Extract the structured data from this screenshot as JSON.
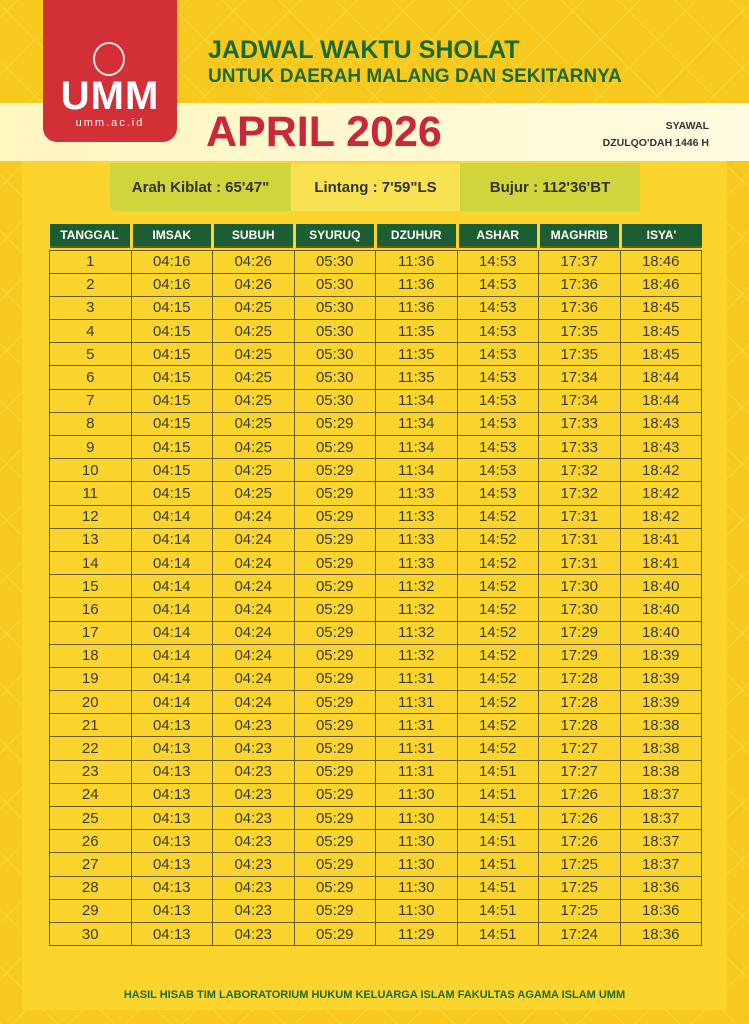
{
  "logo": {
    "name": "UMM",
    "site": "umm.ac.id"
  },
  "header": {
    "title": "JADWAL WAKTU SHOLAT",
    "subtitle": "UNTUK DAERAH MALANG DAN SEKITARNYA",
    "month": "APRIL 2026",
    "hijri_1": "SYAWAL",
    "hijri_2": "DZULQO'DAH 1446 H"
  },
  "info": {
    "kiblat": "Arah Kiblat : 65'47\"",
    "lintang": "Lintang : 7'59\"LS",
    "bujur": "Bujur : 112'36'BT"
  },
  "colors": {
    "green": "#1b5e33",
    "red": "#d22f37",
    "yellow": "#f7c81e"
  },
  "table": {
    "headers": [
      "TANGGAL",
      "IMSAK",
      "SUBUH",
      "SYURUQ",
      "DZUHUR",
      "ASHAR",
      "MAGHRIB",
      "ISYA'"
    ],
    "rows": [
      [
        "1",
        "04:16",
        "04:26",
        "05:30",
        "11:36",
        "14:53",
        "17:37",
        "18:46"
      ],
      [
        "2",
        "04:16",
        "04:26",
        "05:30",
        "11:36",
        "14:53",
        "17:36",
        "18:46"
      ],
      [
        "3",
        "04:15",
        "04:25",
        "05:30",
        "11:36",
        "14:53",
        "17:36",
        "18:45"
      ],
      [
        "4",
        "04:15",
        "04:25",
        "05:30",
        "11:35",
        "14:53",
        "17:35",
        "18:45"
      ],
      [
        "5",
        "04:15",
        "04:25",
        "05:30",
        "11:35",
        "14:53",
        "17:35",
        "18:45"
      ],
      [
        "6",
        "04:15",
        "04:25",
        "05:30",
        "11:35",
        "14:53",
        "17:34",
        "18:44"
      ],
      [
        "7",
        "04:15",
        "04:25",
        "05:30",
        "11:34",
        "14:53",
        "17:34",
        "18:44"
      ],
      [
        "8",
        "04:15",
        "04:25",
        "05:29",
        "11:34",
        "14:53",
        "17:33",
        "18:43"
      ],
      [
        "9",
        "04:15",
        "04:25",
        "05:29",
        "11:34",
        "14:53",
        "17:33",
        "18:43"
      ],
      [
        "10",
        "04:15",
        "04:25",
        "05:29",
        "11:34",
        "14:53",
        "17:32",
        "18:42"
      ],
      [
        "11",
        "04:15",
        "04:25",
        "05:29",
        "11:33",
        "14:53",
        "17:32",
        "18:42"
      ],
      [
        "12",
        "04:14",
        "04:24",
        "05:29",
        "11:33",
        "14:52",
        "17:31",
        "18:42"
      ],
      [
        "13",
        "04:14",
        "04:24",
        "05:29",
        "11:33",
        "14:52",
        "17:31",
        "18:41"
      ],
      [
        "14",
        "04:14",
        "04:24",
        "05:29",
        "11:33",
        "14:52",
        "17:31",
        "18:41"
      ],
      [
        "15",
        "04:14",
        "04:24",
        "05:29",
        "11:32",
        "14:52",
        "17:30",
        "18:40"
      ],
      [
        "16",
        "04:14",
        "04:24",
        "05:29",
        "11:32",
        "14:52",
        "17:30",
        "18:40"
      ],
      [
        "17",
        "04:14",
        "04:24",
        "05:29",
        "11:32",
        "14:52",
        "17:29",
        "18:40"
      ],
      [
        "18",
        "04:14",
        "04:24",
        "05:29",
        "11:32",
        "14:52",
        "17:29",
        "18:39"
      ],
      [
        "19",
        "04:14",
        "04:24",
        "05:29",
        "11:31",
        "14:52",
        "17:28",
        "18:39"
      ],
      [
        "20",
        "04:14",
        "04:24",
        "05:29",
        "11:31",
        "14:52",
        "17:28",
        "18:39"
      ],
      [
        "21",
        "04:13",
        "04:23",
        "05:29",
        "11:31",
        "14:52",
        "17:28",
        "18:38"
      ],
      [
        "22",
        "04:13",
        "04:23",
        "05:29",
        "11:31",
        "14:52",
        "17:27",
        "18:38"
      ],
      [
        "23",
        "04:13",
        "04:23",
        "05:29",
        "11:31",
        "14:51",
        "17:27",
        "18:38"
      ],
      [
        "24",
        "04:13",
        "04:23",
        "05:29",
        "11:30",
        "14:51",
        "17:26",
        "18:37"
      ],
      [
        "25",
        "04:13",
        "04:23",
        "05:29",
        "11:30",
        "14:51",
        "17:26",
        "18:37"
      ],
      [
        "26",
        "04:13",
        "04:23",
        "05:29",
        "11:30",
        "14:51",
        "17:26",
        "18:37"
      ],
      [
        "27",
        "04:13",
        "04:23",
        "05:29",
        "11:30",
        "14:51",
        "17:25",
        "18:37"
      ],
      [
        "28",
        "04:13",
        "04:23",
        "05:29",
        "11:30",
        "14:51",
        "17:25",
        "18:36"
      ],
      [
        "29",
        "04:13",
        "04:23",
        "05:29",
        "11:30",
        "14:51",
        "17:25",
        "18:36"
      ],
      [
        "30",
        "04:13",
        "04:23",
        "05:29",
        "11:29",
        "14:51",
        "17:24",
        "18:36"
      ]
    ]
  },
  "footer": "HASIL HISAB TIM LABORATORIUM HUKUM KELUARGA ISLAM FAKULTAS AGAMA ISLAM UMM"
}
